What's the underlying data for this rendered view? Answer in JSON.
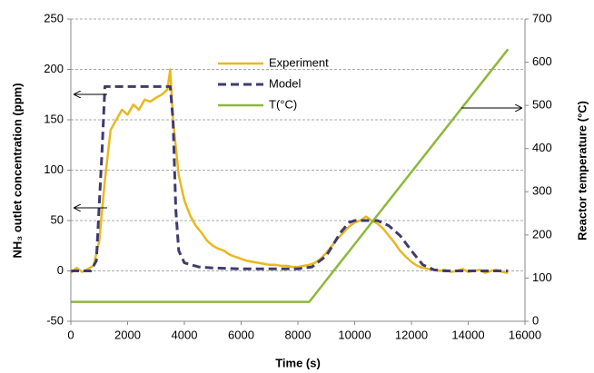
{
  "chart_data": {
    "type": "line",
    "xlabel": "Time (s)",
    "ylabel": "NH₃ outlet concentration (ppm)",
    "y2label": "Reactor temperature (°C)",
    "xlim": [
      0,
      16000
    ],
    "xticks": [
      0,
      2000,
      4000,
      6000,
      8000,
      10000,
      12000,
      14000,
      16000
    ],
    "ylim": [
      -50,
      250
    ],
    "yticks": [
      -50,
      0,
      50,
      100,
      150,
      200,
      250
    ],
    "y2lim": [
      0,
      700
    ],
    "y2ticks": [
      0,
      100,
      200,
      300,
      400,
      500,
      600,
      700
    ],
    "grid": true,
    "legend": "top-center",
    "series": [
      {
        "name": "Experiment",
        "color": "#e8b820",
        "x": [
          0,
          200,
          400,
          600,
          800,
          1000,
          1200,
          1400,
          1600,
          1800,
          2000,
          2200,
          2400,
          2600,
          2800,
          3000,
          3200,
          3400,
          3500,
          3600,
          3800,
          4000,
          4200,
          4400,
          4600,
          4800,
          5000,
          5200,
          5400,
          5600,
          5800,
          6000,
          6200,
          6400,
          6600,
          6800,
          7000,
          7200,
          7400,
          7600,
          7800,
          8000,
          8200,
          8400,
          8600,
          8800,
          9000,
          9200,
          9400,
          9600,
          9800,
          10000,
          10200,
          10400,
          10600,
          10800,
          11000,
          11200,
          11400,
          11600,
          11800,
          12000,
          12200,
          12400,
          12600,
          12800,
          13000,
          13200,
          13400,
          13600,
          13800,
          14000,
          14200,
          14400,
          14600,
          14800,
          15000,
          15200,
          15400
        ],
        "values": [
          -2,
          3,
          -1,
          2,
          5,
          30,
          90,
          140,
          150,
          160,
          155,
          165,
          160,
          170,
          168,
          172,
          175,
          180,
          200,
          150,
          95,
          70,
          55,
          45,
          38,
          30,
          25,
          22,
          20,
          16,
          14,
          12,
          10,
          9,
          8,
          7,
          6,
          6,
          5,
          5,
          4,
          4,
          5,
          6,
          8,
          12,
          18,
          25,
          32,
          38,
          44,
          48,
          50,
          54,
          50,
          47,
          42,
          35,
          28,
          20,
          14,
          9,
          5,
          3,
          2,
          1,
          0,
          1,
          -1,
          0,
          2,
          -1,
          0,
          1,
          -2,
          0,
          1,
          -1,
          -2
        ]
      },
      {
        "name": "Model",
        "color": "#3f3b6e",
        "dash": true,
        "x": [
          0,
          700,
          900,
          1100,
          1200,
          3500,
          3600,
          3700,
          3800,
          4000,
          4500,
          5000,
          6000,
          8000,
          8500,
          9000,
          9500,
          9800,
          10000,
          10800,
          11200,
          11600,
          12000,
          12400,
          12800,
          13200,
          15400
        ],
        "values": [
          0,
          0,
          10,
          120,
          183,
          183,
          150,
          60,
          20,
          8,
          4,
          3,
          2,
          2,
          4,
          15,
          38,
          48,
          50,
          50,
          45,
          35,
          20,
          6,
          1,
          0,
          0
        ]
      },
      {
        "name": "T(°C)",
        "color": "#8db83a",
        "axis": "y2",
        "x": [
          0,
          8400,
          15400
        ],
        "values": [
          45,
          45,
          630
        ]
      }
    ]
  }
}
